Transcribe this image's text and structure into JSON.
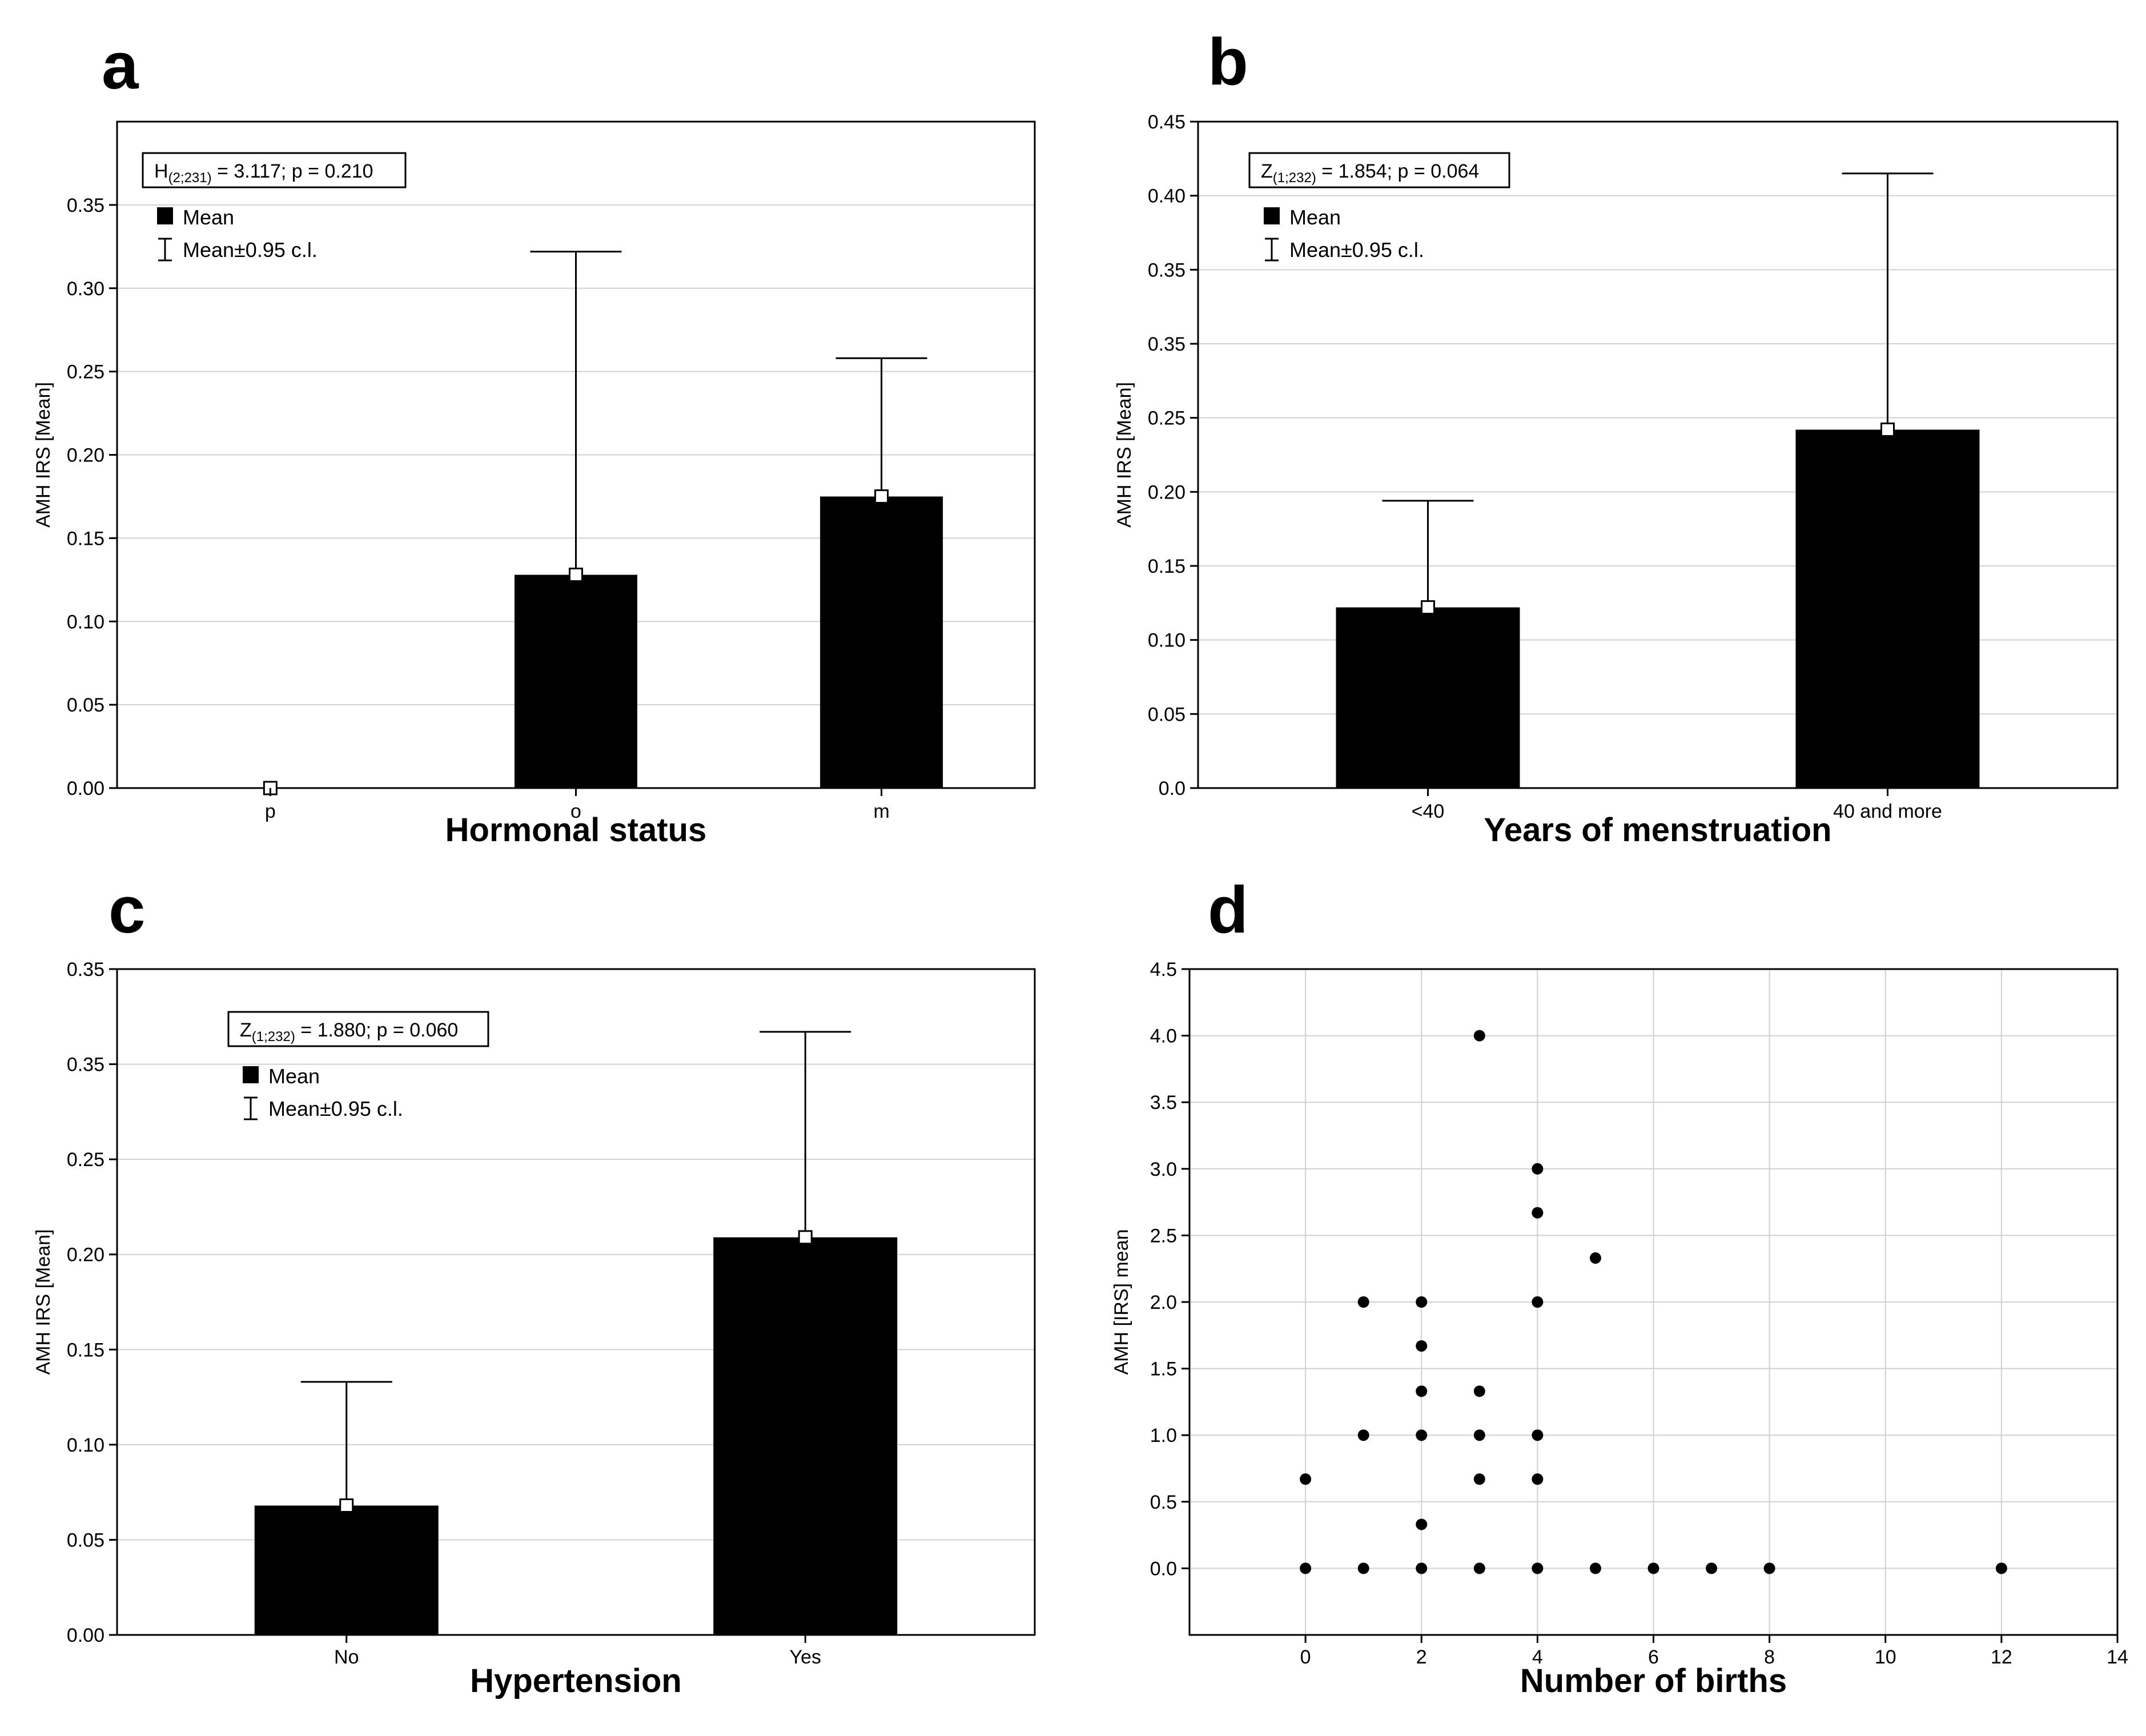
{
  "colors": {
    "ink": "#000000",
    "grid": "#d0d0d0",
    "background": "#ffffff"
  },
  "chart_data": [
    {
      "panel": "a",
      "type": "bar",
      "xlabel": "Hormonal status",
      "ylabel": "AMH IRS [Mean]",
      "categories": [
        "p",
        "o",
        "m"
      ],
      "values": [
        0.0,
        0.128,
        0.175
      ],
      "error_upper": [
        0.0,
        0.322,
        0.258
      ],
      "ylim": [
        0,
        0.4
      ],
      "yticks": [
        "0.00",
        "0.05",
        "0.10",
        "0.15",
        "0.20",
        "0.25",
        "0.30",
        "0.35"
      ],
      "grid": true,
      "stat_main": "H",
      "stat_sub": "(2;231)",
      "stat_rest": " = 3.117; p = 0.210",
      "legend": [
        "Mean",
        "Mean±0.95 c.l."
      ],
      "legend_position": "top-left"
    },
    {
      "panel": "b",
      "type": "bar",
      "xlabel": "Years of menstruation",
      "ylabel": "AMH IRS [Mean]",
      "categories": [
        "<40",
        "40 and more"
      ],
      "values": [
        0.122,
        0.242
      ],
      "error_upper": [
        0.194,
        0.415
      ],
      "ylim": [
        0,
        0.45
      ],
      "yticks": [
        "0.0",
        "0.05",
        "0.10",
        "0.15",
        "0.20",
        "0.25",
        "0.35",
        "0.35",
        "0.40",
        "0.45"
      ],
      "grid": true,
      "stat_main": "Z",
      "stat_sub": "(1;232)",
      "stat_rest": " = 1.854; p = 0.064",
      "legend": [
        "Mean",
        "Mean±0.95 c.l."
      ],
      "legend_position": "top-left"
    },
    {
      "panel": "c",
      "type": "bar",
      "xlabel": "Hypertension",
      "ylabel": "AMH IRS [Mean]",
      "categories": [
        "No",
        "Yes"
      ],
      "values": [
        0.068,
        0.209
      ],
      "error_upper": [
        0.133,
        0.317
      ],
      "ylim": [
        0,
        0.35
      ],
      "yticks": [
        "0.00",
        "0.05",
        "0.10",
        "0.15",
        "0.20",
        "0.25",
        "0.35",
        "0.35"
      ],
      "grid": true,
      "stat_main": "Z",
      "stat_sub": "(1;232)",
      "stat_rest": " = 1.880; p = 0.060",
      "legend": [
        "Mean",
        "Mean±0.95 c.l."
      ],
      "legend_position": "top-left"
    },
    {
      "panel": "d",
      "type": "scatter",
      "xlabel": "Number of births",
      "ylabel": "AMH [IRS] mean",
      "xlim": [
        -2,
        14
      ],
      "ylim": [
        -0.5,
        4.5
      ],
      "xticks": [
        0,
        2,
        4,
        6,
        8,
        10,
        12,
        14
      ],
      "yticks": [
        "0.0",
        "0.5",
        "1.0",
        "1.5",
        "2.0",
        "2.5",
        "3.0",
        "3.5",
        "4.0",
        "4.5"
      ],
      "grid": true,
      "points": [
        [
          0,
          0.0
        ],
        [
          0,
          0.67
        ],
        [
          1,
          0.0
        ],
        [
          1,
          1.0
        ],
        [
          1,
          2.0
        ],
        [
          2,
          0.0
        ],
        [
          2,
          0.33
        ],
        [
          2,
          1.0
        ],
        [
          2,
          1.33
        ],
        [
          2,
          1.67
        ],
        [
          2,
          2.0
        ],
        [
          3,
          0.0
        ],
        [
          3,
          0.67
        ],
        [
          3,
          1.0
        ],
        [
          3,
          1.33
        ],
        [
          3,
          4.0
        ],
        [
          4,
          0.0
        ],
        [
          4,
          0.67
        ],
        [
          4,
          1.0
        ],
        [
          4,
          2.0
        ],
        [
          4,
          2.67
        ],
        [
          4,
          3.0
        ],
        [
          5,
          0.0
        ],
        [
          5,
          2.33
        ],
        [
          6,
          0.0
        ],
        [
          7,
          0.0
        ],
        [
          8,
          0.0
        ],
        [
          12,
          0.0
        ]
      ]
    }
  ]
}
